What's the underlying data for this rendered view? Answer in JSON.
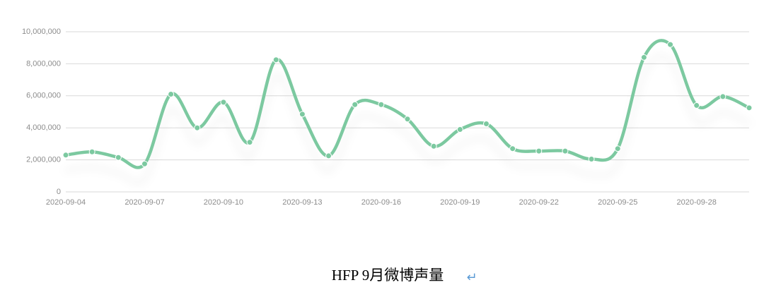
{
  "chart_data": {
    "type": "line",
    "categories": [
      "2020-09-04",
      null,
      null,
      "2020-09-07",
      null,
      null,
      "2020-09-10",
      null,
      null,
      "2020-09-13",
      null,
      null,
      "2020-09-16",
      null,
      null,
      "2020-09-19",
      null,
      null,
      "2020-09-22",
      null,
      null,
      "2020-09-25",
      null,
      null,
      "2020-09-28",
      null,
      null
    ],
    "series": [
      {
        "color": "#7cc9a0",
        "values": [
          2300000,
          2500000,
          2150000,
          1750000,
          6100000,
          4000000,
          5600000,
          3100000,
          8250000,
          4850000,
          2250000,
          5450000,
          5450000,
          4550000,
          2850000,
          3900000,
          4250000,
          2700000,
          2550000,
          2550000,
          2050000,
          2700000,
          8400000,
          9200000,
          5400000,
          5950000,
          5250000
        ]
      }
    ],
    "ylim": [
      0,
      10000000
    ],
    "yticks": [
      0,
      {
        "value": 2000000,
        "label": "2,000,000"
      },
      {
        "value": 4000000,
        "label": "4,000,000"
      },
      {
        "value": 6000000,
        "label": "6,000,000"
      },
      {
        "value": 8000000,
        "label": "8,000,000"
      },
      {
        "value": 10000000,
        "label": "10,000,000"
      }
    ],
    "grid": true
  },
  "caption": {
    "text": "HFP 9月微博声量",
    "mark": "↵"
  }
}
